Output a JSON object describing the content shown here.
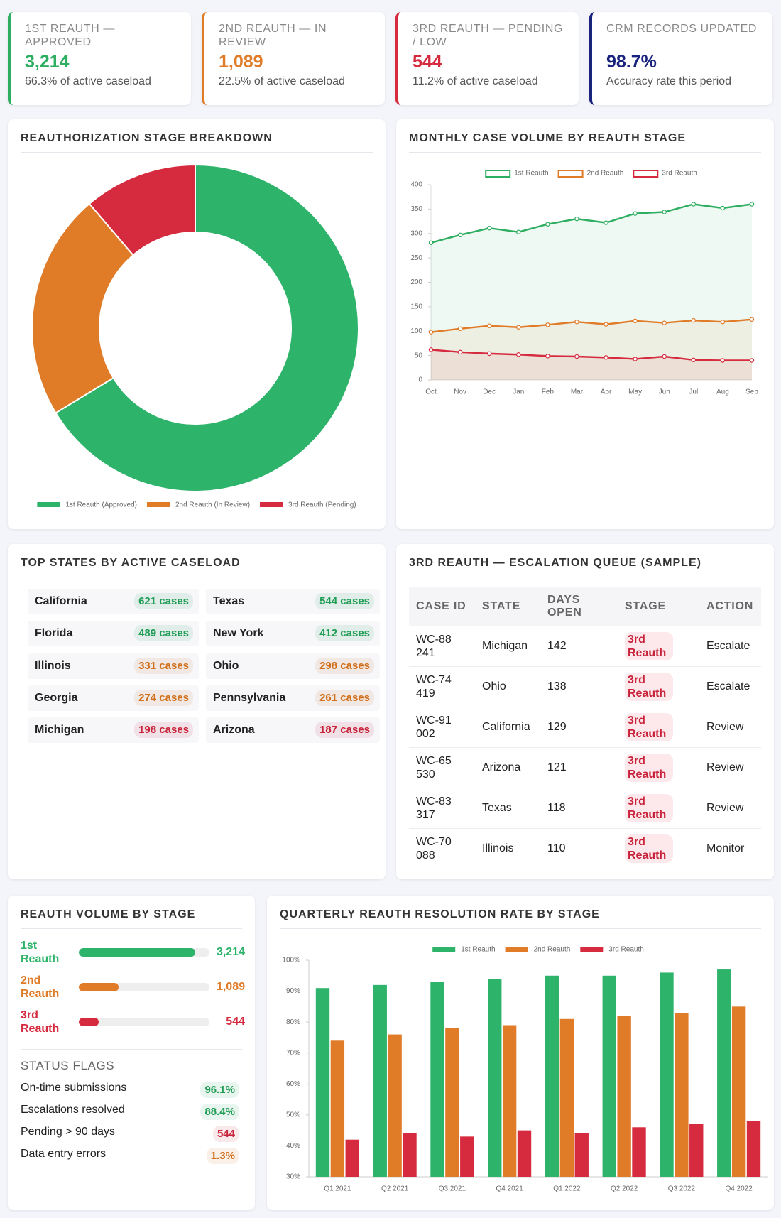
{
  "kpis": [
    {
      "label": "1ST REAUTH — APPROVED",
      "value": "3,214",
      "note": "66.3% of active caseload",
      "color": "#2eae60"
    },
    {
      "label": "2ND REAUTH — IN REVIEW",
      "value": "1,089",
      "note": "22.5% of active caseload",
      "color": "#e07b28"
    },
    {
      "label": "3RD REAUTH — PENDING / LOW",
      "value": "544",
      "note": "11.2% of active caseload",
      "color": "#d62b3f"
    },
    {
      "label": "CRM RECORDS UPDATED",
      "value": "98.7%",
      "note": "Accuracy rate this period",
      "color": "#1a237e"
    }
  ],
  "chart_data": [
    {
      "type": "donut",
      "title": "REAUTHORIZATION STAGE BREAKDOWN",
      "categories": [
        "1st Reauth (Approved)",
        "2nd Reauth (In Review)",
        "3rd Reauth (Pending)"
      ],
      "values": [
        3214,
        1089,
        544
      ],
      "colors": [
        "#2eb36b",
        "#e07b28",
        "#d62b3f"
      ],
      "legend": "bottom"
    },
    {
      "type": "line",
      "title": "MONTHLY CASE VOLUME BY REAUTH STAGE",
      "categories": [
        "Oct",
        "Nov",
        "Dec",
        "Jan",
        "Feb",
        "Mar",
        "Apr",
        "May",
        "Jun",
        "Jul",
        "Aug",
        "Sep"
      ],
      "series": [
        {
          "name": "1st Reauth",
          "color": "#2eae60",
          "values": [
            281,
            297,
            311,
            303,
            319,
            330,
            322,
            341,
            344,
            360,
            352,
            360
          ]
        },
        {
          "name": "2nd Reauth",
          "color": "#e07b28",
          "values": [
            98,
            105,
            111,
            108,
            113,
            119,
            114,
            121,
            117,
            122,
            119,
            124
          ]
        },
        {
          "name": "3rd Reauth",
          "color": "#d62b3f",
          "values": [
            62,
            57,
            54,
            52,
            49,
            48,
            46,
            43,
            48,
            41,
            40,
            40
          ]
        }
      ],
      "ylim": [
        0,
        400
      ],
      "yticks": [
        0,
        50,
        100,
        150,
        200,
        250,
        300,
        350,
        400
      ],
      "grid": false,
      "legend": "top"
    },
    {
      "type": "bar",
      "title": "QUARTERLY REAUTH RESOLUTION RATE BY STAGE",
      "categories": [
        "Q1 2021",
        "Q2 2021",
        "Q3 2021",
        "Q4 2021",
        "Q1 2022",
        "Q2 2022",
        "Q3 2022",
        "Q4 2022"
      ],
      "series": [
        {
          "name": "1st Reauth",
          "color": "#2eb36b",
          "values": [
            91,
            92,
            93,
            94,
            95,
            95,
            96,
            97
          ]
        },
        {
          "name": "2nd Reauth",
          "color": "#e07b28",
          "values": [
            74,
            76,
            78,
            79,
            81,
            82,
            83,
            85
          ]
        },
        {
          "name": "3rd Reauth",
          "color": "#d62b3f",
          "values": [
            42,
            44,
            43,
            45,
            44,
            46,
            47,
            48
          ]
        }
      ],
      "ylim": [
        30,
        100
      ],
      "yticks": [
        {
          "value": 30,
          "label": "30%"
        },
        {
          "value": 40,
          "label": "40%"
        },
        {
          "value": 50,
          "label": "50%"
        },
        {
          "value": 60,
          "label": "60%"
        },
        {
          "value": 70,
          "label": "70%"
        },
        {
          "value": 80,
          "label": "80%"
        },
        {
          "value": 90,
          "label": "90%"
        },
        {
          "value": 100,
          "label": "100%"
        }
      ],
      "grid": false,
      "legend": "top"
    }
  ],
  "states": {
    "title": "TOP STATES BY ACTIVE CASELOAD",
    "items": [
      {
        "name": "California",
        "cases": "621 cases",
        "color": "#1f9d55"
      },
      {
        "name": "Texas",
        "cases": "544 cases",
        "color": "#1f9d55"
      },
      {
        "name": "Florida",
        "cases": "489 cases",
        "color": "#1f9d55"
      },
      {
        "name": "New York",
        "cases": "412 cases",
        "color": "#1f9d55"
      },
      {
        "name": "Illinois",
        "cases": "331 cases",
        "color": "#d0701c"
      },
      {
        "name": "Ohio",
        "cases": "298 cases",
        "color": "#d0701c"
      },
      {
        "name": "Georgia",
        "cases": "274 cases",
        "color": "#d0701c"
      },
      {
        "name": "Pennsylvania",
        "cases": "261 cases",
        "color": "#d0701c"
      },
      {
        "name": "Michigan",
        "cases": "198 cases",
        "color": "#c8233a"
      },
      {
        "name": "Arizona",
        "cases": "187 cases",
        "color": "#c8233a"
      }
    ]
  },
  "queue": {
    "title": "3RD REAUTH — ESCALATION QUEUE (SAMPLE)",
    "headers": [
      "CASE ID",
      "STATE",
      "DAYS OPEN",
      "STAGE",
      "ACTION"
    ],
    "rows": [
      [
        "WC-88241",
        "Michigan",
        "142",
        "3rd Reauth",
        "Escalate"
      ],
      [
        "WC-74419",
        "Ohio",
        "138",
        "3rd Reauth",
        "Escalate"
      ],
      [
        "WC-91002",
        "California",
        "129",
        "3rd Reauth",
        "Review"
      ],
      [
        "WC-65530",
        "Arizona",
        "121",
        "3rd Reauth",
        "Review"
      ],
      [
        "WC-83317",
        "Texas",
        "118",
        "3rd Reauth",
        "Review"
      ],
      [
        "WC-70088",
        "Illinois",
        "110",
        "3rd Reauth",
        "Monitor"
      ]
    ]
  },
  "volume": {
    "title": "REAUTH VOLUME BY STAGE",
    "xlim": [
      0,
      3600
    ],
    "rows": [
      {
        "label": "1st Reauth",
        "value": 3214,
        "value_label": "3,214",
        "color": "#2eb36b"
      },
      {
        "label": "2nd Reauth",
        "value": 1089,
        "value_label": "1,089",
        "color": "#e07b28"
      },
      {
        "label": "3rd Reauth",
        "value": 544,
        "value_label": "544",
        "color": "#d62b3f"
      }
    ]
  },
  "flags": {
    "title": "STATUS FLAGS",
    "rows": [
      {
        "label": "On-time submissions",
        "value": "96.1%",
        "color": "#1f9d55"
      },
      {
        "label": "Escalations resolved",
        "value": "88.4%",
        "color": "#1f9d55"
      },
      {
        "label": "Pending > 90 days",
        "value": "544",
        "color": "#c8233a"
      },
      {
        "label": "Data entry errors",
        "value": "1.3%",
        "color": "#d0701c"
      }
    ]
  }
}
